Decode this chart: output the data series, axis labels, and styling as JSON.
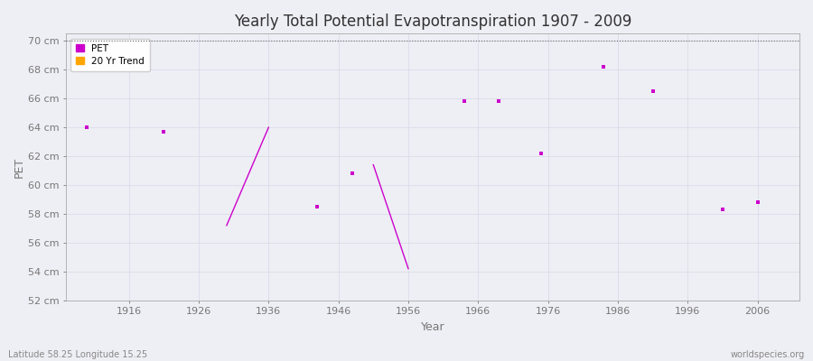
{
  "title": "Yearly Total Potential Evapotranspiration 1907 - 2009",
  "xlabel": "Year",
  "ylabel": "PET",
  "subtitle_left": "Latitude 58.25 Longitude 15.25",
  "subtitle_right": "worldspecies.org",
  "xlim": [
    1907,
    2012
  ],
  "ylim": [
    52,
    70.5
  ],
  "ytick_labels": [
    "52 cm",
    "54 cm",
    "56 cm",
    "58 cm",
    "60 cm",
    "62 cm",
    "64 cm",
    "66 cm",
    "68 cm",
    "70 cm"
  ],
  "ytick_values": [
    52,
    54,
    56,
    58,
    60,
    62,
    64,
    66,
    68,
    70
  ],
  "xtick_values": [
    1916,
    1926,
    1936,
    1946,
    1956,
    1966,
    1976,
    1986,
    1996,
    2006
  ],
  "pet_years": [
    1910,
    1921,
    1943,
    1948,
    1964,
    1969,
    1975,
    1984,
    1991,
    2001,
    2006
  ],
  "pet_values": [
    64.0,
    63.7,
    58.5,
    60.8,
    65.8,
    65.8,
    62.2,
    68.2,
    66.5,
    58.3,
    58.8
  ],
  "trend_segments": [
    {
      "x": [
        1930,
        1936
      ],
      "y": [
        57.2,
        64.0
      ]
    },
    {
      "x": [
        1951,
        1956
      ],
      "y": [
        61.4,
        54.2
      ]
    }
  ],
  "pet_color": "#cc00cc",
  "trend_color": "#cc00cc",
  "bg_color": "#eeeef5",
  "grid_color": "#d8d8e8",
  "top_dotted_y": 70,
  "top_dotted_color": "#666666"
}
